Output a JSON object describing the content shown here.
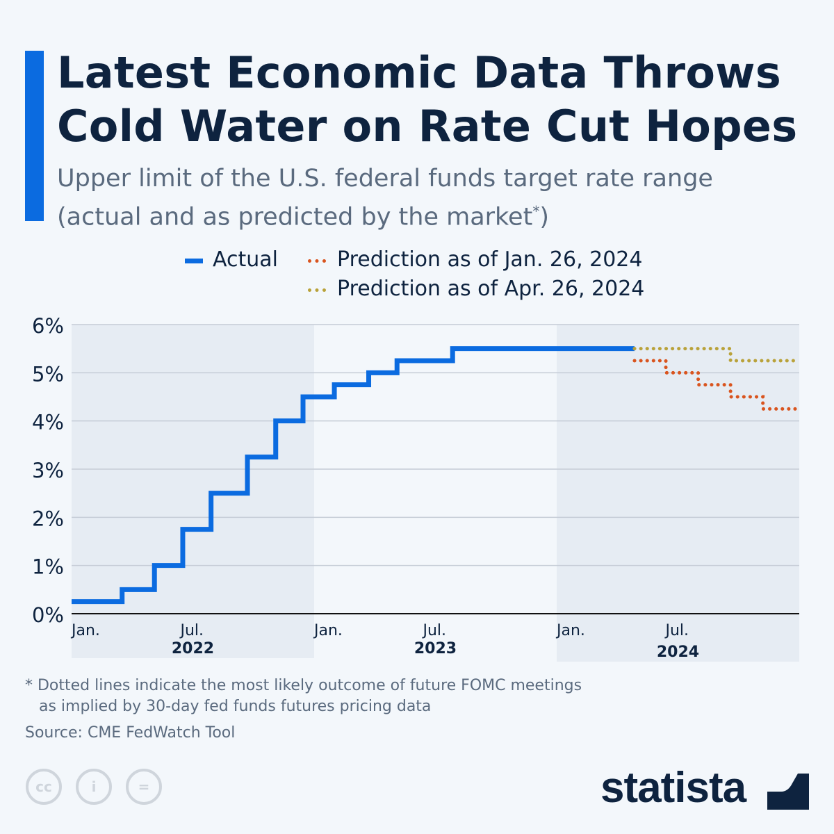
{
  "header": {
    "title_line1": "Latest Economic Data Throws",
    "title_line2": "Cold Water on Rate Cut Hopes",
    "subtitle_line1": "Upper limit of the U.S. federal funds target rate range",
    "subtitle_line2": "(actual and as predicted by the market",
    "subtitle_sup": "*",
    "subtitle_close": ")"
  },
  "colors": {
    "accent": "#0b6be0",
    "actual": "#0b6be0",
    "jan": "#d9541e",
    "apr": "#b9a23a",
    "text": "#0e233f",
    "band": "#e6ecf3"
  },
  "chart_data": {
    "type": "line",
    "step": true,
    "x_unit": "months since Jan. 2022",
    "xlim": [
      0,
      36
    ],
    "ylim": [
      0,
      6
    ],
    "ylabel": "",
    "xlabel": "",
    "y_ticks": [
      "0%",
      "1%",
      "2%",
      "3%",
      "4%",
      "5%",
      "6%"
    ],
    "x_ticks": [
      {
        "x": 0,
        "label": "Jan."
      },
      {
        "x": 6,
        "label": "Jul."
      },
      {
        "x": 12,
        "label": "Jan."
      },
      {
        "x": 18,
        "label": "Jul."
      },
      {
        "x": 24,
        "label": "Jan."
      },
      {
        "x": 30,
        "label": "Jul."
      }
    ],
    "year_labels": [
      {
        "x": 6,
        "label": "2022"
      },
      {
        "x": 18,
        "label": "2023"
      },
      {
        "x": 30,
        "label": "2024"
      }
    ],
    "grid": true,
    "legend_position": "top",
    "series": [
      {
        "name": "Actual",
        "style": "solid",
        "x": [
          0,
          2.5,
          4.1,
          5.5,
          6.9,
          8.7,
          10.1,
          11.45,
          13.0,
          14.7,
          16.1,
          18.85,
          27.85
        ],
        "y": [
          0.25,
          0.5,
          1.0,
          1.75,
          2.5,
          3.25,
          4.0,
          4.5,
          4.75,
          5.0,
          5.25,
          5.5,
          5.5
        ]
      },
      {
        "name": "Prediction as of Jan. 26, 2024",
        "style": "dotted",
        "x": [
          27.85,
          29.4,
          31.0,
          32.6,
          34.2,
          36
        ],
        "y": [
          5.25,
          5.0,
          4.75,
          4.5,
          4.25,
          4.25
        ]
      },
      {
        "name": "Prediction as of Apr. 26, 2024",
        "style": "dotted",
        "x": [
          27.85,
          32.6,
          36
        ],
        "y": [
          5.5,
          5.25,
          5.25
        ]
      }
    ]
  },
  "footer": {
    "note_line1": "* Dotted lines indicate the most likely outcome of future FOMC meetings",
    "note_line2": "as implied by 30-day fed funds futures pricing data",
    "source": "Source: CME FedWatch Tool",
    "logo": "statista",
    "cc_labels": [
      "cc",
      "i",
      "="
    ]
  }
}
